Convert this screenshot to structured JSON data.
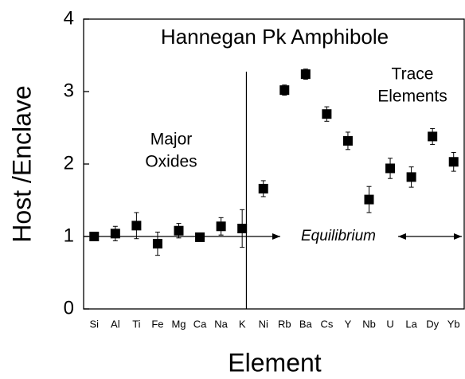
{
  "chart_data": {
    "type": "scatter",
    "title": "Hannegan Pk Amphibole",
    "x_label": "Element",
    "y_label": "Host /Enclave",
    "categories": [
      "Si",
      "Al",
      "Ti",
      "Fe",
      "Mg",
      "Ca",
      "Na",
      "K",
      "Ni",
      "Rb",
      "Ba",
      "Cs",
      "Y",
      "Nb",
      "U",
      "La",
      "Dy",
      "Yb"
    ],
    "values": [
      1.0,
      1.04,
      1.15,
      0.9,
      1.08,
      0.99,
      1.14,
      1.11,
      1.66,
      3.02,
      3.24,
      2.69,
      2.32,
      1.51,
      1.94,
      1.82,
      2.38,
      2.03
    ],
    "errors": [
      0.04,
      0.1,
      0.18,
      0.16,
      0.1,
      0.04,
      0.12,
      0.26,
      0.11,
      0.07,
      0.07,
      0.1,
      0.12,
      0.18,
      0.14,
      0.14,
      0.11,
      0.13
    ],
    "color": "#000000",
    "ylim": [
      0,
      4
    ],
    "yticks": [
      0,
      1,
      2,
      3,
      4
    ],
    "reference_line": 1,
    "annotations": {
      "major": [
        "Major",
        "Oxides"
      ],
      "trace": [
        "Trace",
        "Elements"
      ],
      "equilibrium": "Equilibrium"
    }
  }
}
